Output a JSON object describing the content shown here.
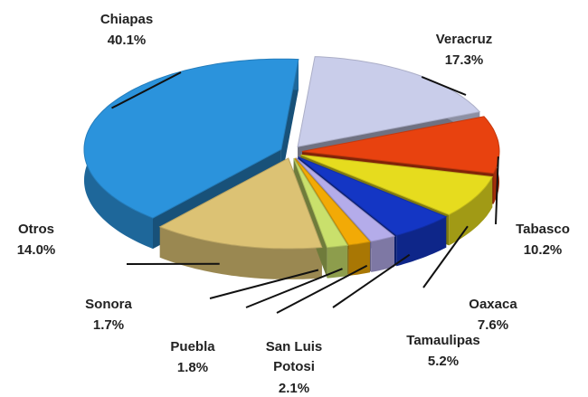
{
  "chart_data": {
    "type": "pie",
    "categories": [
      "Veracruz",
      "Tabasco",
      "Oaxaca",
      "Tamaulipas",
      "San Luis Potosi",
      "Puebla",
      "Sonora",
      "Otros",
      "Chiapas"
    ],
    "values": [
      17.3,
      10.2,
      7.6,
      5.2,
      2.1,
      1.8,
      1.7,
      14.0,
      40.1
    ],
    "value_labels": [
      "17.3%",
      "10.2%",
      "7.6%",
      "5.2%",
      "2.1%",
      "1.8%",
      "1.7%",
      "14.0%",
      "40.1%"
    ],
    "colors": [
      "#c9cdea",
      "#e8420f",
      "#e6dc1e",
      "#1436c4",
      "#b4acea",
      "#f2aa06",
      "#c9e06c",
      "#dcc274",
      "#2b93dc"
    ]
  }
}
